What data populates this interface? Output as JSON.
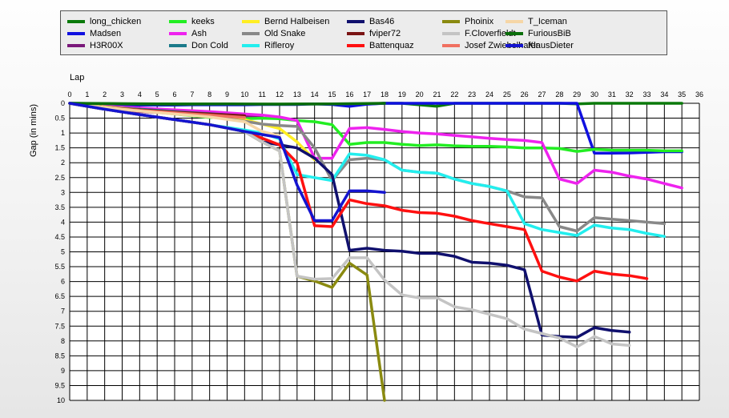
{
  "chart_data": {
    "type": "line",
    "xlabel": "Lap",
    "ylabel": "Gap (in mins)",
    "xlim": [
      0,
      36
    ],
    "ylim": [
      0,
      10
    ],
    "y_inverted": true,
    "x_ticks": [
      0,
      1,
      2,
      3,
      4,
      5,
      6,
      7,
      8,
      9,
      10,
      11,
      12,
      13,
      14,
      15,
      16,
      17,
      18,
      19,
      20,
      21,
      22,
      23,
      24,
      25,
      26,
      27,
      28,
      29,
      30,
      31,
      32,
      33,
      34,
      35,
      36
    ],
    "y_ticks": [
      "0",
      "0.5",
      "1",
      "1.5",
      "2",
      "2.5",
      "3",
      "3.5",
      "4",
      "4.5",
      "5",
      "5.5",
      "6",
      "6.5",
      "7",
      "7.5",
      "8",
      "8.5",
      "9",
      "9.5",
      "10"
    ],
    "grid": true,
    "legend_position": "top",
    "series": [
      {
        "name": "long_chicken",
        "color": "#0a7a0a",
        "x": [
          0,
          5,
          10,
          15,
          16,
          17,
          18,
          19,
          20,
          21,
          22,
          25,
          28,
          29,
          30,
          32,
          35
        ],
        "y": [
          0,
          0.02,
          0.03,
          0.02,
          0.05,
          0.02,
          0,
          0,
          0.05,
          0.1,
          0,
          0,
          0,
          0.02,
          0,
          0,
          0
        ]
      },
      {
        "name": "Madsen",
        "color": "#1010e0",
        "x": [
          0,
          1,
          2,
          3,
          4,
          5,
          6,
          7,
          8,
          9,
          10,
          11,
          12,
          13,
          14,
          15,
          16,
          17,
          18,
          19,
          20,
          21,
          22,
          23,
          24,
          25,
          26,
          27,
          28,
          29,
          30,
          31,
          32,
          33,
          34,
          35
        ],
        "y": [
          0,
          0.05,
          0.05,
          0.06,
          0.06,
          0.06,
          0.06,
          0.05,
          0.05,
          0.05,
          0.05,
          0.04,
          0.04,
          0.04,
          0.02,
          0.04,
          0.1,
          0.03,
          0,
          0,
          0,
          0,
          0,
          0,
          0,
          0,
          0,
          0,
          0,
          0,
          1.68,
          1.68,
          1.67,
          1.65,
          1.63,
          1.63
        ]
      },
      {
        "name": "H3R00X",
        "color": "#7a187a",
        "x": [
          0,
          2,
          4,
          6,
          8,
          9,
          10,
          11
        ],
        "y": [
          0,
          0.18,
          0.28,
          0.34,
          0.38,
          0.42,
          0.42,
          0.45
        ]
      },
      {
        "name": "keeks",
        "color": "#22ee22",
        "x": [
          0,
          1,
          2,
          3,
          4,
          5,
          6,
          7,
          8,
          9,
          10,
          11,
          12,
          13,
          14,
          15,
          16,
          17,
          18,
          19,
          20,
          21,
          22,
          23,
          24,
          25,
          26,
          27,
          28,
          29,
          30,
          31,
          32,
          33,
          34,
          35
        ],
        "y": [
          0,
          0.08,
          0.12,
          0.16,
          0.22,
          0.3,
          0.36,
          0.42,
          0.48,
          0.48,
          0.52,
          0.5,
          0.52,
          0.58,
          0.62,
          0.72,
          1.38,
          1.32,
          1.32,
          1.38,
          1.42,
          1.4,
          1.43,
          1.45,
          1.45,
          1.47,
          1.5,
          1.5,
          1.52,
          1.62,
          1.55,
          1.58,
          1.58,
          1.58,
          1.6,
          1.6
        ]
      },
      {
        "name": "Ash",
        "color": "#ee22ee",
        "x": [
          0,
          2,
          4,
          6,
          8,
          10,
          11,
          12,
          13,
          14,
          15,
          16,
          17,
          18,
          19,
          20,
          21,
          22,
          23,
          24,
          25,
          26,
          27,
          28,
          29,
          30,
          31,
          32,
          33,
          34,
          35
        ],
        "y": [
          0,
          0.1,
          0.16,
          0.22,
          0.28,
          0.36,
          0.4,
          0.46,
          0.58,
          1.85,
          1.85,
          0.85,
          0.82,
          0.88,
          0.95,
          1.0,
          1.03,
          1.08,
          1.13,
          1.18,
          1.22,
          1.25,
          1.32,
          2.55,
          2.7,
          2.25,
          2.32,
          2.45,
          2.55,
          2.7,
          2.85
        ]
      },
      {
        "name": "Don Cold",
        "color": "#1a7a8a",
        "x": [
          0,
          2,
          4,
          6,
          8,
          10
        ],
        "y": [
          0,
          0.12,
          0.2,
          0.28,
          0.35,
          0.42
        ]
      },
      {
        "name": "Bernd Halbeisen",
        "color": "#ffee22",
        "x": [
          0,
          2,
          4,
          6,
          8,
          10,
          12,
          13,
          14
        ],
        "y": [
          0,
          0.12,
          0.22,
          0.32,
          0.42,
          0.55,
          0.85,
          1.3,
          1.9
        ]
      },
      {
        "name": "Old Snake",
        "color": "#888888",
        "x": [
          0,
          2,
          4,
          6,
          8,
          10,
          11,
          12,
          13,
          14,
          15,
          16,
          17,
          18,
          19,
          20,
          21,
          22,
          23,
          24,
          25,
          26,
          27,
          28,
          29,
          30,
          31,
          32,
          33,
          34
        ],
        "y": [
          0,
          0.14,
          0.24,
          0.34,
          0.44,
          0.6,
          0.7,
          0.75,
          0.78,
          1.5,
          2.6,
          1.9,
          1.85,
          1.9,
          2.25,
          2.32,
          2.35,
          2.55,
          2.7,
          2.8,
          2.95,
          3.15,
          3.18,
          4.15,
          4.3,
          3.85,
          3.9,
          3.95,
          4.0,
          4.05
        ]
      },
      {
        "name": "Rifleroy",
        "color": "#22eeee",
        "x": [
          0,
          2,
          4,
          6,
          8,
          10,
          11,
          12,
          13,
          14,
          15,
          16,
          17,
          18,
          19,
          20,
          21,
          22,
          23,
          24,
          25,
          26,
          27,
          28,
          29,
          30,
          31,
          32,
          33,
          34
        ],
        "y": [
          0,
          0.2,
          0.38,
          0.55,
          0.72,
          0.9,
          1.0,
          1.2,
          2.4,
          2.5,
          2.6,
          1.7,
          1.75,
          1.9,
          2.25,
          2.32,
          2.35,
          2.55,
          2.7,
          2.8,
          2.95,
          4.05,
          4.25,
          4.35,
          4.45,
          4.1,
          4.2,
          4.25,
          4.38,
          4.48
        ]
      },
      {
        "name": "Bas46",
        "color": "#10106e",
        "x": [
          0,
          2,
          4,
          6,
          8,
          10,
          11,
          12,
          13,
          14,
          15,
          16,
          17,
          18,
          19,
          20,
          21,
          22,
          23,
          24,
          25,
          26,
          27,
          28,
          29,
          30,
          31,
          32
        ],
        "y": [
          0,
          0.2,
          0.38,
          0.55,
          0.72,
          0.95,
          1.3,
          1.4,
          1.5,
          1.85,
          2.4,
          4.95,
          4.88,
          4.95,
          4.98,
          5.05,
          5.05,
          5.15,
          5.35,
          5.38,
          5.45,
          5.6,
          7.8,
          7.85,
          7.88,
          7.55,
          7.65,
          7.7
        ]
      },
      {
        "name": "fviper72",
        "color": "#7a1414",
        "x": [
          0,
          2,
          4,
          6,
          8,
          10
        ],
        "y": [
          0,
          0.14,
          0.22,
          0.3,
          0.36,
          0.42
        ]
      },
      {
        "name": "Battenquaz",
        "color": "#ff1010",
        "x": [
          0,
          2,
          4,
          6,
          8,
          10,
          12,
          13,
          14,
          15,
          16,
          17,
          18,
          19,
          20,
          21,
          22,
          23,
          24,
          25,
          26,
          27,
          28,
          29,
          30,
          31,
          32,
          33
        ],
        "y": [
          0,
          0.2,
          0.38,
          0.55,
          0.72,
          0.95,
          1.4,
          2.0,
          4.12,
          4.15,
          3.25,
          3.38,
          3.45,
          3.6,
          3.68,
          3.7,
          3.8,
          3.95,
          4.05,
          4.15,
          4.25,
          5.65,
          5.85,
          5.98,
          5.65,
          5.75,
          5.8,
          5.9
        ]
      },
      {
        "name": "Phoinix",
        "color": "#8a8a10",
        "x": [
          0,
          2,
          4,
          6,
          8,
          10,
          11,
          12,
          13,
          14,
          15,
          16,
          17,
          18
        ],
        "y": [
          0,
          0.2,
          0.38,
          0.55,
          0.72,
          0.95,
          1.3,
          1.6,
          5.82,
          5.98,
          6.2,
          5.38,
          5.78,
          10.0
        ]
      },
      {
        "name": "F.Cloverfieldt",
        "color": "#c4c4c4",
        "x": [
          0,
          2,
          4,
          6,
          8,
          10,
          11,
          12,
          13,
          14,
          15,
          16,
          17,
          18,
          19,
          20,
          21,
          22,
          23,
          24,
          25,
          26,
          27,
          28,
          29,
          30,
          31,
          32
        ],
        "y": [
          0,
          0.2,
          0.38,
          0.55,
          0.72,
          0.95,
          1.3,
          1.6,
          5.82,
          5.92,
          5.9,
          5.2,
          5.2,
          5.95,
          6.45,
          6.55,
          6.55,
          6.85,
          6.95,
          7.1,
          7.25,
          7.6,
          7.75,
          7.9,
          8.2,
          7.85,
          8.1,
          8.15
        ]
      },
      {
        "name": "Josef Zwiebelhafer",
        "color": "#f07060",
        "x": [
          0,
          2,
          4,
          6,
          8,
          10
        ],
        "y": [
          0,
          0.14,
          0.24,
          0.32,
          0.4,
          0.48
        ]
      },
      {
        "name": "T_Iceman",
        "color": "#f6d6a6",
        "x": [
          0,
          2,
          4,
          6,
          8,
          10,
          11,
          12
        ],
        "y": [
          0,
          0.14,
          0.26,
          0.36,
          0.46,
          0.62,
          0.95,
          1.1
        ]
      },
      {
        "name": "FuriousBiB",
        "color": "#0a6e0a",
        "x": [
          0,
          3,
          6,
          9,
          12,
          15,
          18
        ],
        "y": [
          0,
          0.02,
          0.03,
          0.02,
          0.03,
          0.02,
          0
        ]
      },
      {
        "name": "KlausDieter",
        "color": "#1414d0",
        "x": [
          0,
          2,
          4,
          6,
          8,
          10,
          11,
          12,
          13,
          14,
          15,
          16,
          17,
          18
        ],
        "y": [
          0,
          0.2,
          0.38,
          0.55,
          0.72,
          0.95,
          1.05,
          1.15,
          2.75,
          3.95,
          3.95,
          2.95,
          2.95,
          3.0
        ]
      }
    ]
  }
}
